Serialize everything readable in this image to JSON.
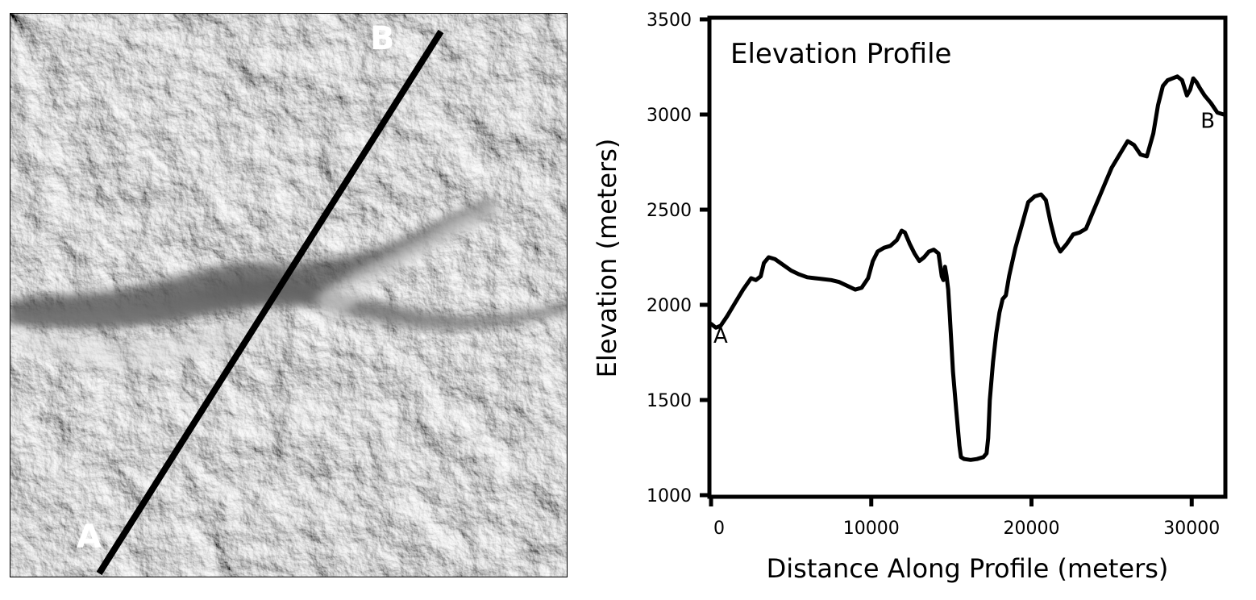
{
  "map": {
    "label_start": "A",
    "label_end": "B"
  },
  "chart_data": {
    "type": "line",
    "title": "Elevation Profile",
    "xlabel": "Distance Along Profile (meters)",
    "ylabel": "Elevation (meters)",
    "xlim": [
      0,
      32000
    ],
    "ylim": [
      1000,
      3500
    ],
    "xticks": [
      0,
      10000,
      20000,
      30000
    ],
    "yticks": [
      1000,
      1500,
      2000,
      2500,
      3000,
      3500
    ],
    "grid": false,
    "line_color": "#000000",
    "annotations": [
      {
        "text": "A",
        "x": 600,
        "y": 1800
      },
      {
        "text": "B",
        "x": 31000,
        "y": 2930
      }
    ],
    "series": [
      {
        "x": [
          0,
          300,
          600,
          1000,
          1500,
          2000,
          2500,
          2800,
          3100,
          3300,
          3600,
          4000,
          4500,
          5000,
          5500,
          6000,
          6500,
          7000,
          7500,
          8000,
          8500,
          9000,
          9400,
          9800,
          10100,
          10400,
          10800,
          11200,
          11600,
          11900,
          12100,
          12400,
          12700,
          13000,
          13300,
          13600,
          13900,
          14200,
          14400,
          14500,
          14600,
          14700,
          14800,
          14900,
          15000,
          15100,
          15300,
          15500,
          15600,
          15800,
          16200,
          16600,
          17000,
          17200,
          17300,
          17400,
          17600,
          17800,
          18000,
          18200,
          18400,
          18600,
          19000,
          19400,
          19800,
          20200,
          20600,
          20900,
          21200,
          21500,
          21800,
          22200,
          22600,
          23000,
          23400,
          23800,
          24200,
          24600,
          25000,
          25500,
          26000,
          26400,
          26800,
          27200,
          27600,
          27900,
          28200,
          28500,
          28800,
          29100,
          29400,
          29700,
          29900,
          30100,
          30300,
          30500,
          30800,
          31200,
          31600,
          32000
        ],
        "values": [
          1900,
          1880,
          1890,
          1940,
          2010,
          2080,
          2140,
          2130,
          2150,
          2220,
          2250,
          2240,
          2210,
          2180,
          2160,
          2145,
          2140,
          2135,
          2130,
          2120,
          2100,
          2080,
          2090,
          2140,
          2230,
          2280,
          2300,
          2310,
          2340,
          2390,
          2380,
          2320,
          2270,
          2230,
          2250,
          2280,
          2290,
          2270,
          2150,
          2130,
          2200,
          2150,
          2080,
          1950,
          1800,
          1650,
          1450,
          1260,
          1200,
          1190,
          1185,
          1190,
          1200,
          1220,
          1300,
          1500,
          1700,
          1850,
          1960,
          2030,
          2050,
          2150,
          2300,
          2420,
          2540,
          2570,
          2580,
          2550,
          2430,
          2330,
          2280,
          2320,
          2370,
          2380,
          2400,
          2480,
          2560,
          2640,
          2720,
          2790,
          2860,
          2840,
          2790,
          2780,
          2900,
          3050,
          3150,
          3180,
          3190,
          3200,
          3180,
          3100,
          3130,
          3190,
          3170,
          3140,
          3100,
          3060,
          3010,
          3000
        ]
      }
    ]
  }
}
